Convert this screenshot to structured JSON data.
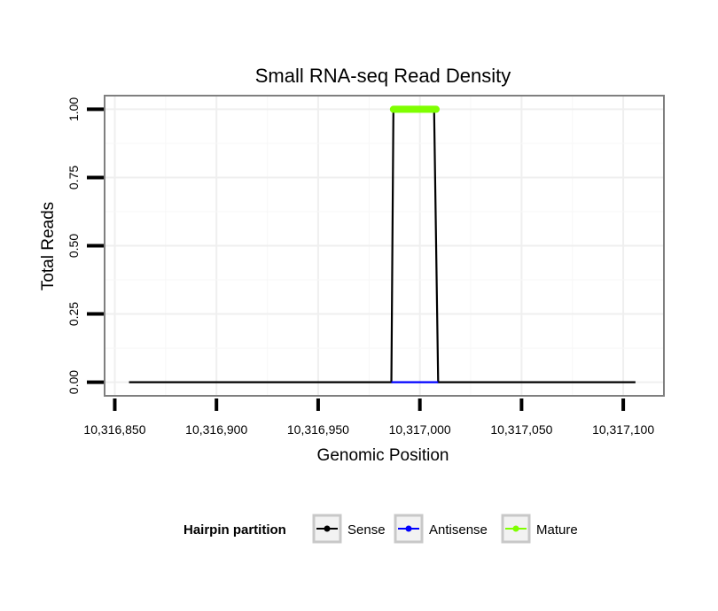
{
  "chart_data": {
    "type": "line",
    "title": "Small RNA-seq Read Density",
    "xlabel": "Genomic Position",
    "ylabel": "Total Reads",
    "xlim": [
      10316845,
      10317120
    ],
    "ylim": [
      -0.05,
      1.05
    ],
    "x_ticks": [
      10316850,
      10316900,
      10316950,
      10317000,
      10317050,
      10317100
    ],
    "x_tick_labels": [
      "10,316,850",
      "10,316,900",
      "10,316,950",
      "10,317,000",
      "10,317,050",
      "10,317,100"
    ],
    "y_ticks": [
      0,
      0.25,
      0.5,
      0.75,
      1
    ],
    "y_tick_labels": [
      "0.00",
      "0.25",
      "0.50",
      "0.75",
      "1.00"
    ],
    "grid": true,
    "series": [
      {
        "name": "Sense",
        "color": "#000000",
        "x": [
          10316857,
          10316986,
          10316987,
          10317007,
          10317009,
          10317106
        ],
        "y": [
          0,
          0,
          1,
          1,
          0,
          0
        ]
      },
      {
        "name": "Antisense",
        "color": "#0000ff",
        "x": [
          10316986,
          10317009
        ],
        "y": [
          0,
          0
        ]
      },
      {
        "name": "Mature",
        "color": "#7fff00",
        "x": [
          10316987,
          10317008
        ],
        "y": [
          1,
          1
        ]
      }
    ],
    "legend": {
      "title": "Hairpin partition",
      "position": "bottom",
      "entries": [
        {
          "label": "Sense",
          "color": "#000000"
        },
        {
          "label": "Antisense",
          "color": "#0000ff"
        },
        {
          "label": "Mature",
          "color": "#7fff00"
        }
      ]
    }
  }
}
